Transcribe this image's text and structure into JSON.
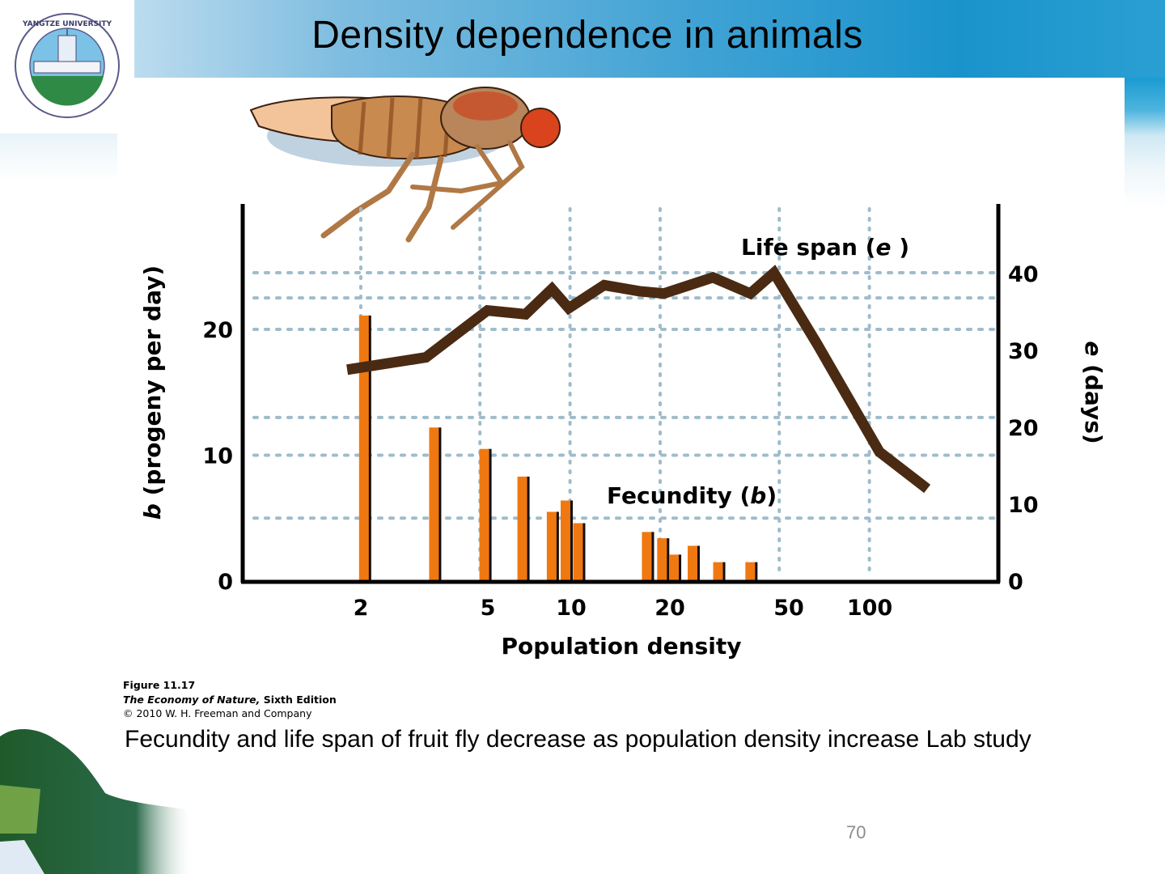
{
  "slide": {
    "title": "Density dependence in animals",
    "logo_text": "YANGTZE UNIVERSITY",
    "caption": "Fecundity and life span of fruit fly decrease as population density increase  Lab study",
    "page_number": "70",
    "credit": {
      "figure": "Figure 11.17",
      "book_title": "The Economy of Nature,",
      "edition": " Sixth Edition",
      "copyright": "© 2010 W. H. Freeman and Company"
    }
  },
  "colors": {
    "bar_fill": "#f07810",
    "bar_shadow": "#111111",
    "line": "#4a2a12",
    "grid": "#9fbccb",
    "axis": "#000000"
  },
  "chart_data": {
    "type": "bar+line",
    "title": "",
    "xlabel": "Population density",
    "xscale": "log",
    "xlim": [
      1,
      200
    ],
    "x_ticks": [
      2,
      5,
      10,
      20,
      50,
      100
    ],
    "x_tick_labels": [
      "2",
      "5",
      "10",
      "20",
      "50",
      "100"
    ],
    "ylabel_left": "b (progeny per day)",
    "ylabel_left_italic_part": "b",
    "ylabel_left_rest": " (progeny per day)",
    "ylim_left": [
      0,
      30
    ],
    "y_ticks_left": [
      0,
      10,
      20
    ],
    "ylabel_right": "e (days)",
    "ylabel_right_italic_part": "e",
    "ylabel_right_rest": " (days)",
    "ylim_right": [
      0,
      49
    ],
    "y_ticks_right": [
      0,
      10,
      20,
      30,
      40
    ],
    "grid": true,
    "grid_style": "dotted",
    "series": [
      {
        "name": "Fecundity (b)",
        "label_main": "Fecundity (",
        "label_var": "b",
        "label_close": ")",
        "type": "bar",
        "axis": "left",
        "x": [
          2.1,
          3.6,
          5.3,
          7.1,
          8.9,
          9.9,
          10.9,
          18.5,
          20.8,
          22.8,
          26.3,
          32.0,
          41.0
        ],
        "values": [
          21.1,
          12.2,
          10.5,
          8.3,
          5.5,
          6.4,
          4.6,
          3.9,
          3.4,
          2.1,
          2.8,
          1.5,
          1.5
        ]
      },
      {
        "name": "Life span (e)",
        "label_main": "Life span (",
        "label_var": "e",
        "label_close": " )",
        "type": "line",
        "axis": "right",
        "x": [
          1.8,
          3.3,
          5.3,
          7.1,
          8.7,
          9.9,
          13.0,
          17.0,
          20.6,
          30.0,
          40.0,
          48.0,
          67.0,
          108.0,
          156.0
        ],
        "values": [
          27.5,
          29.1,
          35.2,
          34.7,
          38.0,
          35.5,
          38.5,
          37.7,
          37.4,
          39.5,
          37.4,
          40.1,
          30.8,
          16.8,
          12.0
        ]
      }
    ],
    "grid_lines_left": [
      5,
      10,
      13,
      20,
      22.5,
      24.5
    ],
    "grid_x": [
      2,
      5,
      10,
      20,
      50,
      100
    ]
  }
}
